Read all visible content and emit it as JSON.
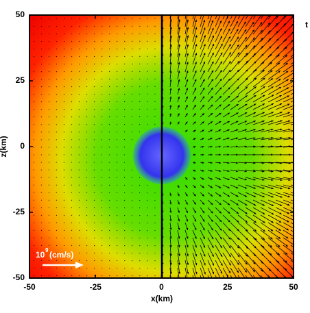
{
  "chart_data": {
    "type": "heatmap",
    "xlabel": "x(km)",
    "ylabel": "z(km)",
    "xlim": [
      -50,
      50
    ],
    "ylim": [
      -50,
      50
    ],
    "xticks": [
      -50,
      -25,
      0,
      25,
      50
    ],
    "yticks": [
      -50,
      -25,
      0,
      25,
      50
    ],
    "annotation": {
      "base": "10",
      "exponent": "9",
      "unit": "(cm/s)"
    },
    "corner_label": "t"
  }
}
